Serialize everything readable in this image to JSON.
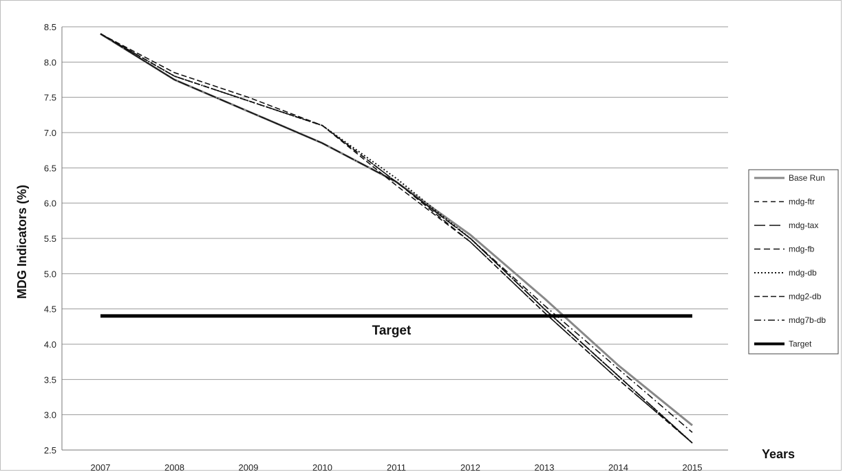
{
  "chart_data": {
    "type": "line",
    "ylabel": "MDG Indicators (%)",
    "xlabel": "Years",
    "x": [
      "2007",
      "2008",
      "2009",
      "2010",
      "2011",
      "2012",
      "2013",
      "2014",
      "2015"
    ],
    "ylim": [
      2.5,
      8.5
    ],
    "yticks": [
      "8.5",
      "8.0",
      "7.5",
      "7.0",
      "6.5",
      "6.0",
      "5.5",
      "5.0",
      "4.5",
      "4.0",
      "3.5",
      "3.0",
      "2.5"
    ],
    "grid": "horizontal",
    "legend_position": "right",
    "annotation": "Target",
    "series": [
      {
        "name": "Base Run",
        "color": "#888888",
        "dash": "",
        "width": 3,
        "values": [
          8.4,
          7.75,
          7.3,
          6.85,
          6.3,
          5.55,
          4.65,
          3.7,
          2.85
        ]
      },
      {
        "name": "mdg-ftr",
        "color": "#111111",
        "dash": "7,5",
        "width": 1.6,
        "values": [
          8.4,
          7.8,
          7.45,
          7.1,
          6.3,
          5.5,
          4.5,
          3.55,
          2.6
        ]
      },
      {
        "name": "mdg-tax",
        "color": "#111111",
        "dash": "16,6",
        "width": 1.6,
        "values": [
          8.4,
          7.75,
          7.3,
          6.85,
          6.3,
          5.5,
          4.5,
          3.55,
          2.6
        ]
      },
      {
        "name": "mdg-fb",
        "color": "#111111",
        "dash": "9,5",
        "width": 1.6,
        "values": [
          8.4,
          7.8,
          7.45,
          7.1,
          6.3,
          5.45,
          4.45,
          3.5,
          2.6
        ]
      },
      {
        "name": "mdg-db",
        "color": "#111111",
        "dash": "2,3",
        "width": 2,
        "values": [
          8.4,
          7.8,
          7.45,
          7.1,
          6.35,
          5.5,
          4.5,
          3.55,
          2.6
        ]
      },
      {
        "name": "mdg2-db",
        "color": "#111111",
        "dash": "8,4",
        "width": 1.6,
        "values": [
          8.4,
          7.85,
          7.5,
          7.1,
          6.25,
          5.45,
          4.45,
          3.5,
          2.6
        ]
      },
      {
        "name": "mdg7b-db",
        "color": "#111111",
        "dash": "10,4,2,4",
        "width": 1.6,
        "values": [
          8.4,
          7.75,
          7.3,
          6.85,
          6.3,
          5.5,
          4.55,
          3.65,
          2.75
        ]
      },
      {
        "name": "Target",
        "color": "#000000",
        "dash": "",
        "width": 5,
        "values": [
          4.4,
          4.4,
          4.4,
          4.4,
          4.4,
          4.4,
          4.4,
          4.4,
          4.4
        ]
      }
    ]
  }
}
